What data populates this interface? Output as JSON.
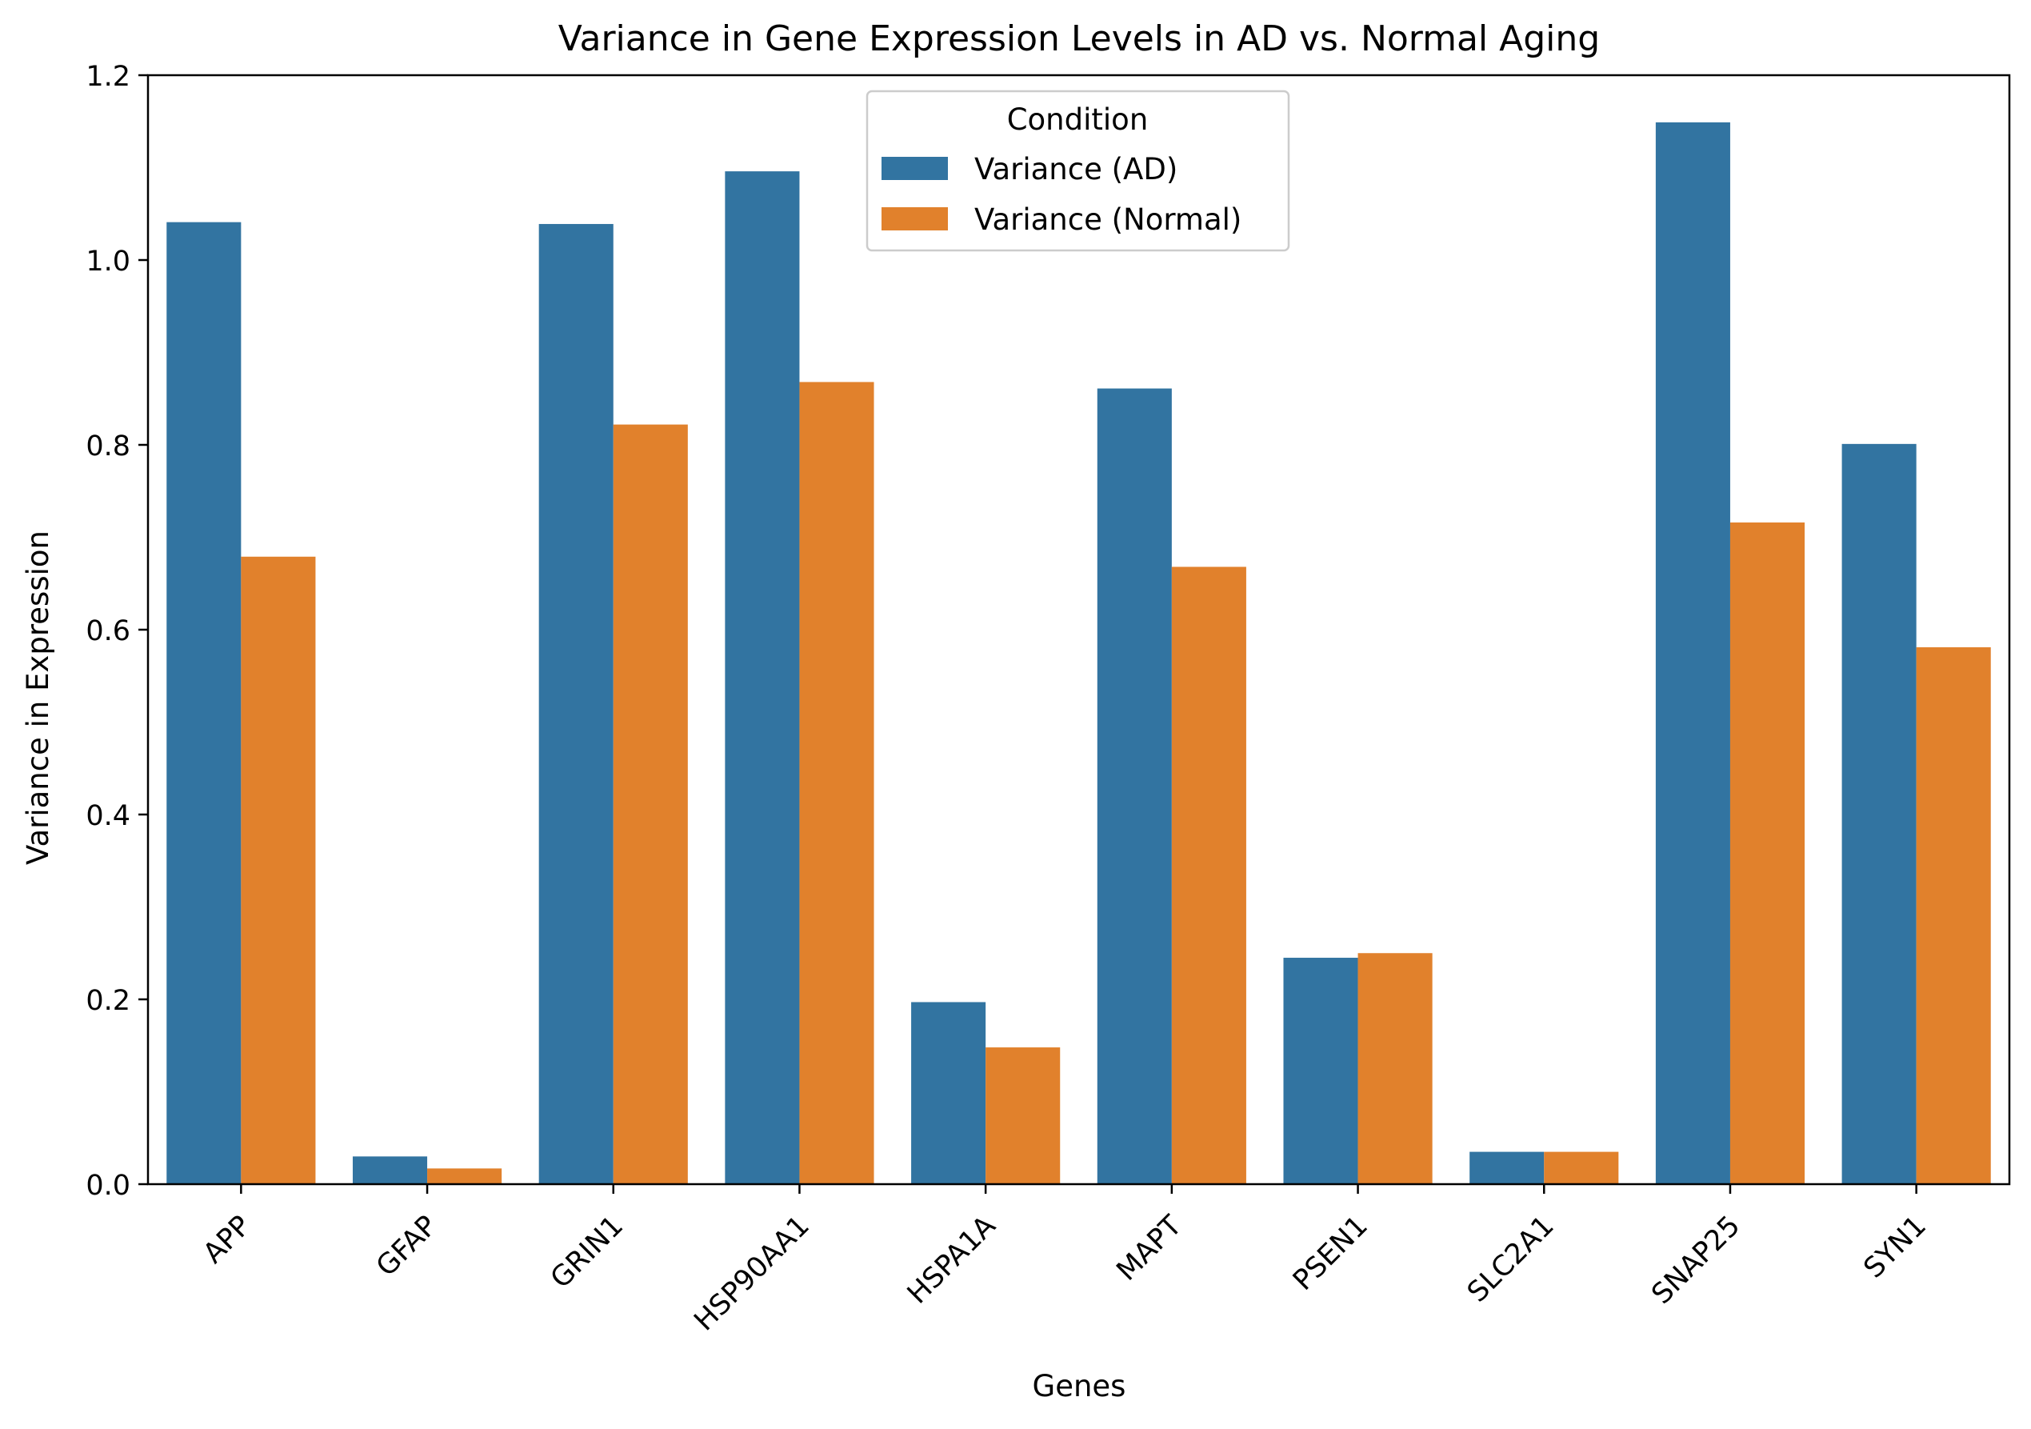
{
  "chart_data": {
    "type": "bar",
    "title": "Variance in Gene Expression Levels in AD vs. Normal Aging",
    "xlabel": "Genes",
    "ylabel": "Variance in Expression",
    "categories": [
      "APP",
      "GFAP",
      "GRIN1",
      "HSP90AA1",
      "HSPA1A",
      "MAPT",
      "PSEN1",
      "SLC2A1",
      "SNAP25",
      "SYN1"
    ],
    "series": [
      {
        "name": "Variance (AD)",
        "color": "#3274a1",
        "values": [
          1.041,
          0.03,
          1.039,
          1.096,
          0.197,
          0.861,
          0.245,
          0.035,
          1.149,
          0.801
        ]
      },
      {
        "name": "Variance (Normal)",
        "color": "#e1812c",
        "values": [
          0.679,
          0.017,
          0.822,
          0.868,
          0.148,
          0.668,
          0.25,
          0.035,
          0.716,
          0.581
        ]
      }
    ],
    "ylim": [
      0,
      1.2
    ],
    "yticks": [
      "0.0",
      "0.2",
      "0.4",
      "0.6",
      "0.8",
      "1.0",
      "1.2"
    ],
    "legend": {
      "title": "Condition",
      "placement": "top-center"
    },
    "grid": false,
    "xtick_rotation": 45
  }
}
